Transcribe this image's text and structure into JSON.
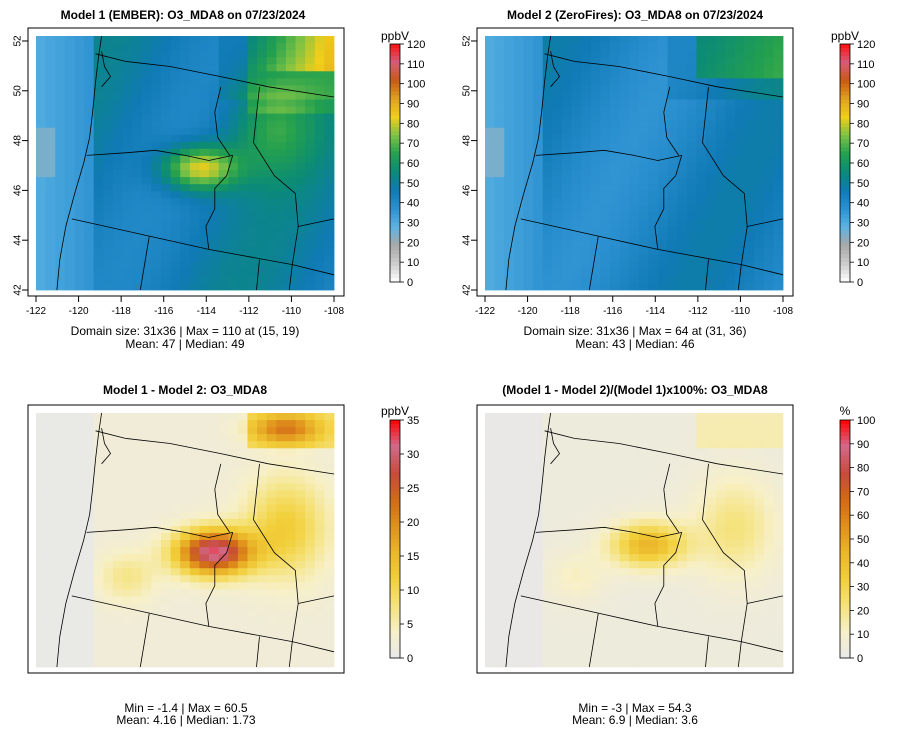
{
  "chart_data": [
    {
      "type": "heatmap",
      "title": "Model 1 (EMBER): O3_MDA8 on 07/23/2024",
      "legend_unit": "ppbV",
      "legend_ticks": [
        "0",
        "10",
        "20",
        "30",
        "40",
        "50",
        "60",
        "70",
        "80",
        "90",
        "100",
        "110",
        "120"
      ],
      "legend_range": [
        0,
        120
      ],
      "colors": [
        "#ffffff",
        "#cccccc",
        "#a8a8a8",
        "#5bb3e3",
        "#2b90d0",
        "#0f7ab5",
        "#0b8a78",
        "#23a04e",
        "#7cc245",
        "#f0cf1a",
        "#e0a020",
        "#c85a15",
        "#d55c7a",
        "#ff1010"
      ],
      "x_ticks": [
        "-122",
        "-120",
        "-118",
        "-116",
        "-114",
        "-112",
        "-110",
        "-108"
      ],
      "y_ticks": [
        "42",
        "44",
        "46",
        "48",
        "50",
        "52"
      ],
      "xlim": [
        -122,
        -108
      ],
      "ylim": [
        42,
        52.2
      ],
      "info_line1": "Domain size: 31x36 | Max = 110 at (15, 19)",
      "info_line2": "Mean: 47 |  Median: 49",
      "show_axes": true
    },
    {
      "type": "heatmap",
      "title": "Model 2 (ZeroFires): O3_MDA8 on 07/23/2024",
      "legend_unit": "ppbV",
      "legend_ticks": [
        "0",
        "10",
        "20",
        "30",
        "40",
        "50",
        "60",
        "70",
        "80",
        "90",
        "100",
        "110",
        "120"
      ],
      "legend_range": [
        0,
        120
      ],
      "colors": [
        "#ffffff",
        "#cccccc",
        "#a8a8a8",
        "#5bb3e3",
        "#2b90d0",
        "#0f7ab5",
        "#0b8a78",
        "#23a04e",
        "#7cc245",
        "#f0cf1a",
        "#e0a020",
        "#c85a15",
        "#d55c7a",
        "#ff1010"
      ],
      "x_ticks": [
        "-122",
        "-120",
        "-118",
        "-116",
        "-114",
        "-112",
        "-110",
        "-108"
      ],
      "y_ticks": [
        "42",
        "44",
        "46",
        "48",
        "50",
        "52"
      ],
      "xlim": [
        -122,
        -108
      ],
      "ylim": [
        42,
        52.2
      ],
      "info_line1": "Domain size: 31x36 | Max = 64 at (31, 36)",
      "info_line2": "Mean: 43 |  Median: 46",
      "show_axes": true
    },
    {
      "type": "heatmap",
      "title": "Model 1 - Model 2: O3_MDA8",
      "legend_unit": "ppbV",
      "legend_ticks": [
        "0",
        "5",
        "10",
        "15",
        "20",
        "25",
        "30",
        "35"
      ],
      "legend_range": [
        0,
        35
      ],
      "colors": [
        "#e8e8e8",
        "#f7f0c8",
        "#f5e27a",
        "#f2cf3a",
        "#eab52a",
        "#e08f1c",
        "#d06a18",
        "#c64a3c",
        "#d36a8a",
        "#ff0000"
      ],
      "info_line1": "Min = -1.4 | Max = 60.5",
      "info_line2": "Mean: 4.16 |  Median: 1.73",
      "show_axes": false
    },
    {
      "type": "heatmap",
      "title": "(Model 1 - Model 2)/(Model 1)x100%: O3_MDA8",
      "legend_unit": "%",
      "legend_ticks": [
        "0",
        "10",
        "20",
        "30",
        "40",
        "50",
        "60",
        "70",
        "80",
        "90",
        "100"
      ],
      "legend_range": [
        0,
        100
      ],
      "colors": [
        "#e8e8e8",
        "#f7f0c8",
        "#f5e27a",
        "#f2cf3a",
        "#eab52a",
        "#e08f1c",
        "#d06a18",
        "#c64a3c",
        "#d36a8a",
        "#ff0000"
      ],
      "info_line1": "Min = -3 | Max = 54.3",
      "info_line2": "Mean: 6.9 |  Median: 3.6",
      "show_axes": false
    }
  ]
}
